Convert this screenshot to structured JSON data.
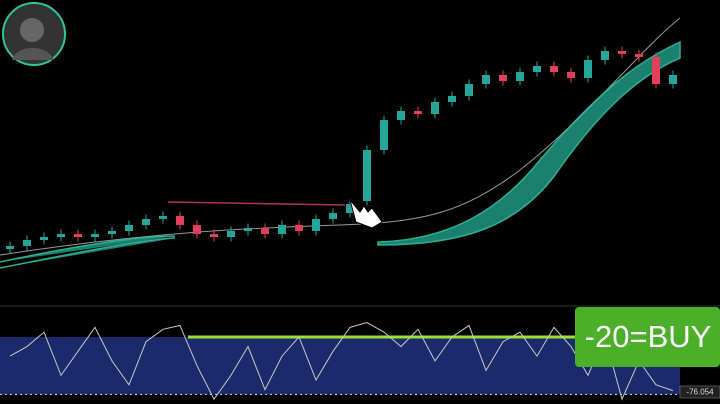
{
  "chart_data": [
    {
      "type": "candlestick",
      "ylim": [
        0,
        100
      ],
      "up_color": "#26a69a",
      "down_color": "#e0405a",
      "open": [
        17,
        18,
        20,
        21,
        22,
        21,
        22,
        23,
        25,
        27,
        28,
        25,
        22,
        21,
        23,
        24,
        22,
        25,
        23,
        27,
        29,
        33,
        50,
        60,
        63,
        62,
        66,
        68,
        72,
        75,
        73,
        76,
        78,
        76,
        74,
        80,
        83,
        82,
        81,
        72
      ],
      "high": [
        19.5,
        21.5,
        22.5,
        23.5,
        23.5,
        23.5,
        24.5,
        26.5,
        28.5,
        29.5,
        29.5,
        26.5,
        23.5,
        24.5,
        25.5,
        25.5,
        26.5,
        26.5,
        28.5,
        30.5,
        33.5,
        51.5,
        61.5,
        64.5,
        64.5,
        67.5,
        69.5,
        73.5,
        76.5,
        76.5,
        77.5,
        79.5,
        79.5,
        77.5,
        81.5,
        84.5,
        84.5,
        83.5,
        82.5,
        76.5
      ],
      "low": [
        15.5,
        16.5,
        18.5,
        19.5,
        19.5,
        19.5,
        20.5,
        21.5,
        23.5,
        25.5,
        23.5,
        20.5,
        19.5,
        19.5,
        21.5,
        20.5,
        20.5,
        21.5,
        21.5,
        25.5,
        27.5,
        31.5,
        48.5,
        58.5,
        60.5,
        60.5,
        64.5,
        66.5,
        70.5,
        71.5,
        71.5,
        74.5,
        74.5,
        72.5,
        72.5,
        78.5,
        80.5,
        79.5,
        70.5,
        70.5
      ],
      "close": [
        18,
        20,
        21,
        22,
        21,
        22,
        23,
        25,
        27,
        28,
        25,
        22,
        21,
        23,
        24,
        22,
        25,
        23,
        27,
        29,
        32,
        50,
        60,
        63,
        62,
        66,
        68,
        72,
        75,
        73,
        76,
        78,
        76,
        74,
        80,
        83,
        82,
        81,
        72,
        75
      ]
    },
    {
      "type": "line",
      "ylim": [
        -90,
        5
      ],
      "color": "#c8c8c8",
      "level": -20,
      "level_label": "-20=BUY",
      "level_color": "#9be22d",
      "band": [
        -80,
        -20
      ],
      "band_color": "#1b2a6b",
      "values": [
        -40,
        -30,
        -15,
        -60,
        -35,
        -10,
        -45,
        -70,
        -25,
        -12,
        -8,
        -50,
        -85,
        -60,
        -30,
        -75,
        -40,
        -20,
        -65,
        -35,
        -10,
        -5,
        -15,
        -30,
        -12,
        -45,
        -20,
        -8,
        -55,
        -25,
        -15,
        -40,
        -10,
        -30,
        -60,
        -20,
        -85,
        -45,
        -70,
        -76.054
      ]
    }
  ]
}
